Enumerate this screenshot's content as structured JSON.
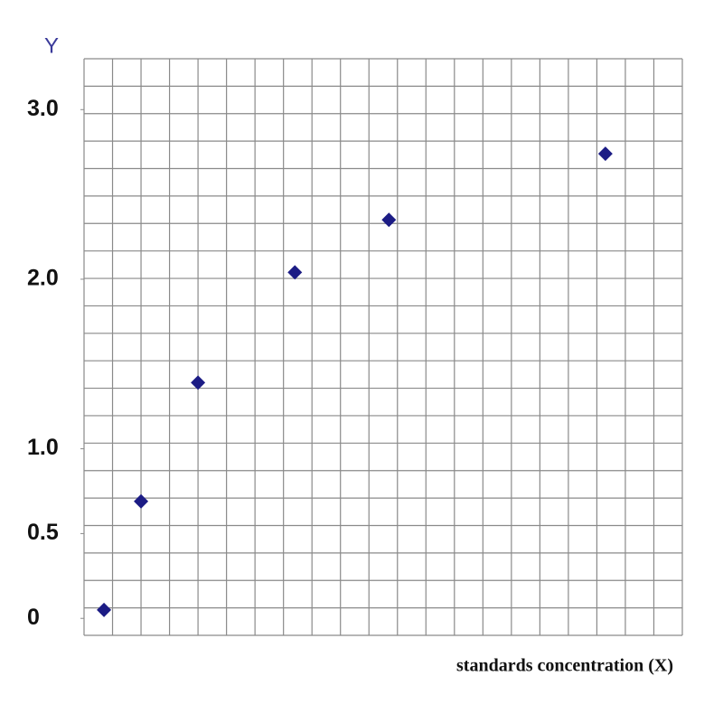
{
  "chart_data": {
    "type": "scatter",
    "y_label": "Y",
    "x_label": "standards concentration (X)",
    "x": [
      0.7,
      2,
      4,
      7.4,
      10.7,
      18.3
    ],
    "values": [
      0.05,
      0.69,
      1.39,
      2.04,
      2.35,
      2.74
    ],
    "color": "#1c1c85",
    "xlim": [
      0,
      21
    ],
    "ylim": [
      -0.1,
      3.3
    ],
    "yticks": [
      {
        "value": 0,
        "label": "0"
      },
      0.5,
      {
        "value": 1,
        "label": "1.0"
      },
      {
        "value": 2,
        "label": "2.0"
      },
      {
        "value": 3,
        "label": "3.0"
      }
    ],
    "grid": true
  }
}
